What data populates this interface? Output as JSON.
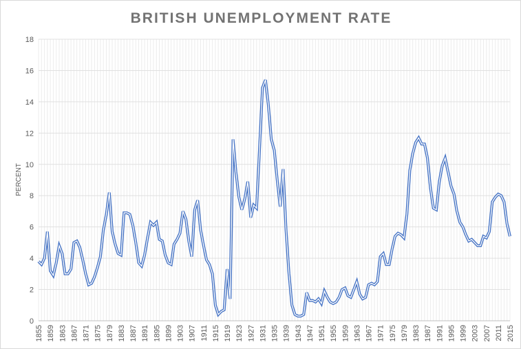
{
  "chart_data": {
    "type": "line",
    "title": "BRITISH UNEMPLOYMENT RATE",
    "xlabel": "",
    "ylabel": "PERCENT",
    "ylim": [
      0,
      18
    ],
    "yticks": [
      0,
      2,
      4,
      6,
      8,
      10,
      12,
      14,
      16,
      18
    ],
    "x_start": 1855,
    "x_end": 2015,
    "x_tick_step": 4,
    "grid": true,
    "legend": "none",
    "series": [
      {
        "name": "Unemployment rate",
        "color": "#4472c4",
        "values": [
          3.8,
          3.6,
          4.0,
          5.7,
          3.2,
          2.9,
          3.7,
          4.8,
          4.3,
          3.0,
          3.0,
          3.3,
          5.0,
          5.1,
          4.7,
          3.9,
          3.0,
          2.3,
          2.4,
          2.8,
          3.4,
          4.1,
          5.8,
          6.8,
          8.2,
          5.7,
          4.9,
          4.3,
          4.2,
          6.9,
          6.9,
          6.8,
          6.1,
          5.0,
          3.7,
          3.5,
          4.2,
          5.3,
          6.3,
          6.1,
          6.3,
          5.2,
          5.1,
          4.2,
          3.7,
          3.6,
          4.9,
          5.2,
          5.6,
          7.0,
          6.5,
          5.1,
          4.1,
          7.1,
          7.7,
          5.8,
          4.8,
          3.9,
          3.6,
          3.0,
          1.0,
          0.4,
          0.6,
          0.7,
          3.3,
          1.4,
          11.6,
          9.5,
          7.9,
          7.1,
          7.8,
          8.9,
          6.6,
          7.4,
          7.2,
          11.0,
          14.9,
          15.4,
          13.8,
          11.6,
          10.9,
          9.0,
          7.3,
          9.7,
          5.8,
          3.0,
          1.0,
          0.4,
          0.3,
          0.3,
          0.4,
          1.8,
          1.3,
          1.3,
          1.2,
          1.4,
          1.1,
          1.9,
          1.5,
          1.2,
          1.1,
          1.2,
          1.5,
          2.0,
          2.1,
          1.6,
          1.5,
          2.0,
          2.5,
          1.7,
          1.4,
          1.5,
          2.3,
          2.4,
          2.3,
          2.5,
          4.1,
          4.3,
          3.6,
          3.6,
          4.6,
          5.4,
          5.6,
          5.5,
          5.3,
          6.8,
          9.6,
          10.7,
          11.4,
          11.7,
          11.3,
          11.3,
          10.4,
          8.5,
          7.2,
          7.1,
          8.9,
          9.9,
          10.4,
          9.5,
          8.6,
          8.1,
          7.0,
          6.3,
          6.0,
          5.5,
          5.1,
          5.2,
          5.0,
          4.8,
          4.8,
          5.4,
          5.3,
          5.7,
          7.6,
          7.9,
          8.1,
          8.0,
          7.6,
          6.2,
          5.4
        ]
      }
    ]
  }
}
